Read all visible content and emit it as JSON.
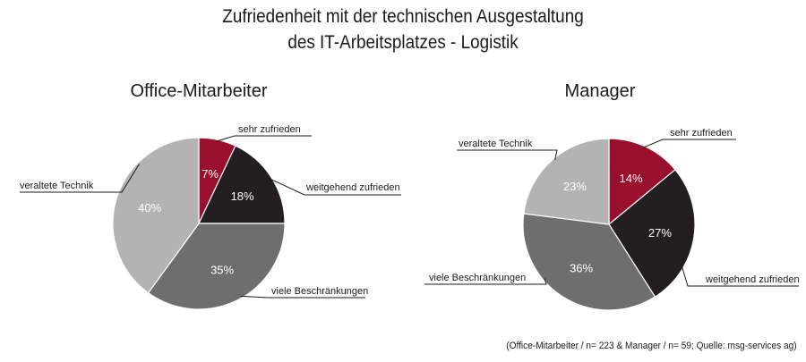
{
  "title": {
    "line1": "Zufriedenheit mit der technischen Ausgestaltung",
    "line2": "des IT-Arbeitsplatzes - Logistik"
  },
  "source": "(Office-Mitarbeiter / n= 223 & Manager / n= 59; Quelle: msg-services ag)",
  "colors": {
    "sehr_zufrieden": "#9b0f2e",
    "weitgehend_zufrieden": "#231f20",
    "viele_beschraenkungen": "#6e6e6e",
    "veraltete_technik": "#b3b3b3"
  },
  "chart_data": [
    {
      "type": "pie",
      "title": "Office-Mitarbeiter",
      "categories": [
        "sehr zufrieden",
        "weitgehend zufrieden",
        "viele Beschränkungen",
        "veraltete Technik"
      ],
      "values": [
        7,
        18,
        35,
        40
      ],
      "value_labels": [
        "7%",
        "18%",
        "35%",
        "40%"
      ],
      "start_angle_deg": 0,
      "direction": "clockwise"
    },
    {
      "type": "pie",
      "title": "Manager",
      "categories": [
        "sehr zufrieden",
        "weitgehend zufrieden",
        "viele Beschränkungen",
        "veraltete Technik"
      ],
      "values": [
        14,
        27,
        36,
        23
      ],
      "value_labels": [
        "14%",
        "27%",
        "36%",
        "23%"
      ],
      "start_angle_deg": 0,
      "direction": "clockwise"
    }
  ]
}
